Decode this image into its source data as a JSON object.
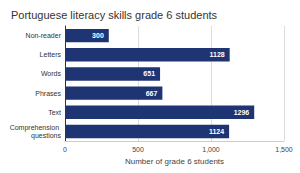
{
  "chart_data": {
    "type": "bar",
    "title": "Portuguese literacy skills grade 6 students",
    "categories": [
      "Non-reader",
      "Letters",
      "Words",
      "Phrases",
      "Text",
      "Comprehension questions"
    ],
    "values": [
      300,
      1128,
      651,
      667,
      1296,
      1124
    ],
    "color": "#1f3473",
    "x_label": "Number of grade 6 students",
    "xlim": [
      0,
      1500
    ],
    "xticks": [
      0,
      500,
      1000,
      1500
    ],
    "orientation": "horizontal",
    "data_labels": true,
    "grid": true
  }
}
